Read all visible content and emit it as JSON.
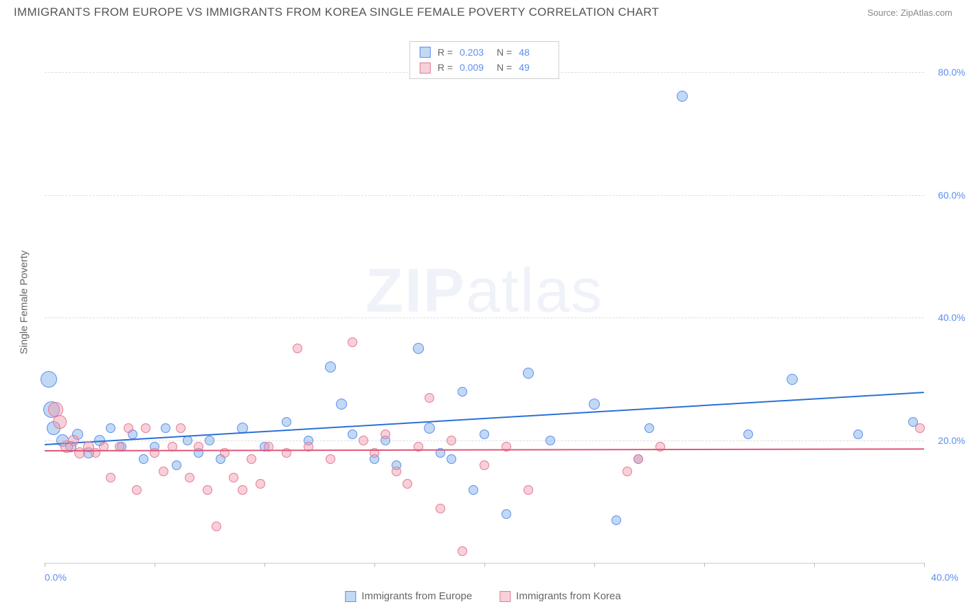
{
  "header": {
    "title": "IMMIGRANTS FROM EUROPE VS IMMIGRANTS FROM KOREA SINGLE FEMALE POVERTY CORRELATION CHART",
    "source": "Source: ZipAtlas.com"
  },
  "chart": {
    "type": "scatter",
    "y_axis_title": "Single Female Poverty",
    "watermark": "ZIPatlas",
    "xlim": [
      0,
      40
    ],
    "ylim": [
      0,
      85
    ],
    "x_ticks": [
      0,
      5,
      10,
      15,
      20,
      25,
      30,
      35,
      40
    ],
    "x_tick_labels": {
      "min": "0.0%",
      "max": "40.0%"
    },
    "y_gridlines": [
      20,
      40,
      60,
      80
    ],
    "y_tick_labels": [
      "20.0%",
      "40.0%",
      "60.0%",
      "80.0%"
    ],
    "background_color": "#ffffff",
    "grid_color": "#dddddd",
    "axis_label_color": "#5b8def",
    "series": [
      {
        "id": "europe",
        "label": "Immigrants from Europe",
        "fill_color": "rgba(120,170,230,0.45)",
        "stroke_color": "#5b8def",
        "trend_color": "#2a6fd6",
        "R": "0.203",
        "N": "48",
        "trend": {
          "x1": 0,
          "y1": 19.5,
          "x2": 40,
          "y2": 28.0
        },
        "points": [
          {
            "x": 0.2,
            "y": 30,
            "r": 12
          },
          {
            "x": 0.3,
            "y": 25,
            "r": 12
          },
          {
            "x": 0.4,
            "y": 22,
            "r": 10
          },
          {
            "x": 0.8,
            "y": 20,
            "r": 9
          },
          {
            "x": 1.2,
            "y": 19,
            "r": 8
          },
          {
            "x": 1.5,
            "y": 21,
            "r": 8
          },
          {
            "x": 2.0,
            "y": 18,
            "r": 8
          },
          {
            "x": 2.5,
            "y": 20,
            "r": 8
          },
          {
            "x": 3.0,
            "y": 22,
            "r": 7
          },
          {
            "x": 3.5,
            "y": 19,
            "r": 7
          },
          {
            "x": 4.0,
            "y": 21,
            "r": 7
          },
          {
            "x": 4.5,
            "y": 17,
            "r": 7
          },
          {
            "x": 5.0,
            "y": 19,
            "r": 7
          },
          {
            "x": 5.5,
            "y": 22,
            "r": 7
          },
          {
            "x": 6.0,
            "y": 16,
            "r": 7
          },
          {
            "x": 6.5,
            "y": 20,
            "r": 7
          },
          {
            "x": 7.0,
            "y": 18,
            "r": 7
          },
          {
            "x": 7.5,
            "y": 20,
            "r": 7
          },
          {
            "x": 8.0,
            "y": 17,
            "r": 7
          },
          {
            "x": 9.0,
            "y": 22,
            "r": 8
          },
          {
            "x": 10.0,
            "y": 19,
            "r": 7
          },
          {
            "x": 11.0,
            "y": 23,
            "r": 7
          },
          {
            "x": 12.0,
            "y": 20,
            "r": 7
          },
          {
            "x": 13.0,
            "y": 32,
            "r": 8
          },
          {
            "x": 13.5,
            "y": 26,
            "r": 8
          },
          {
            "x": 14.0,
            "y": 21,
            "r": 7
          },
          {
            "x": 15.0,
            "y": 17,
            "r": 7
          },
          {
            "x": 15.5,
            "y": 20,
            "r": 7
          },
          {
            "x": 16.0,
            "y": 16,
            "r": 7
          },
          {
            "x": 17.0,
            "y": 35,
            "r": 8
          },
          {
            "x": 17.5,
            "y": 22,
            "r": 8
          },
          {
            "x": 18.0,
            "y": 18,
            "r": 7
          },
          {
            "x": 18.5,
            "y": 17,
            "r": 7
          },
          {
            "x": 19.0,
            "y": 28,
            "r": 7
          },
          {
            "x": 19.5,
            "y": 12,
            "r": 7
          },
          {
            "x": 20.0,
            "y": 21,
            "r": 7
          },
          {
            "x": 21.0,
            "y": 8,
            "r": 7
          },
          {
            "x": 22.0,
            "y": 31,
            "r": 8
          },
          {
            "x": 23.0,
            "y": 20,
            "r": 7
          },
          {
            "x": 25.0,
            "y": 26,
            "r": 8
          },
          {
            "x": 26.0,
            "y": 7,
            "r": 7
          },
          {
            "x": 27.0,
            "y": 17,
            "r": 7
          },
          {
            "x": 27.5,
            "y": 22,
            "r": 7
          },
          {
            "x": 29.0,
            "y": 76,
            "r": 8
          },
          {
            "x": 32.0,
            "y": 21,
            "r": 7
          },
          {
            "x": 34.0,
            "y": 30,
            "r": 8
          },
          {
            "x": 37.0,
            "y": 21,
            "r": 7
          },
          {
            "x": 39.5,
            "y": 23,
            "r": 7
          }
        ]
      },
      {
        "id": "korea",
        "label": "Immigrants from Korea",
        "fill_color": "rgba(240,150,170,0.45)",
        "stroke_color": "#e27a94",
        "trend_color": "#e05577",
        "R": "0.009",
        "N": "49",
        "trend": {
          "x1": 0,
          "y1": 18.5,
          "x2": 40,
          "y2": 18.8
        },
        "points": [
          {
            "x": 0.5,
            "y": 25,
            "r": 11
          },
          {
            "x": 0.7,
            "y": 23,
            "r": 10
          },
          {
            "x": 1.0,
            "y": 19,
            "r": 9
          },
          {
            "x": 1.3,
            "y": 20,
            "r": 8
          },
          {
            "x": 1.6,
            "y": 18,
            "r": 8
          },
          {
            "x": 2.0,
            "y": 19,
            "r": 8
          },
          {
            "x": 2.3,
            "y": 18,
            "r": 7
          },
          {
            "x": 2.7,
            "y": 19,
            "r": 7
          },
          {
            "x": 3.0,
            "y": 14,
            "r": 7
          },
          {
            "x": 3.4,
            "y": 19,
            "r": 7
          },
          {
            "x": 3.8,
            "y": 22,
            "r": 7
          },
          {
            "x": 4.2,
            "y": 12,
            "r": 7
          },
          {
            "x": 4.6,
            "y": 22,
            "r": 7
          },
          {
            "x": 5.0,
            "y": 18,
            "r": 7
          },
          {
            "x": 5.4,
            "y": 15,
            "r": 7
          },
          {
            "x": 5.8,
            "y": 19,
            "r": 7
          },
          {
            "x": 6.2,
            "y": 22,
            "r": 7
          },
          {
            "x": 6.6,
            "y": 14,
            "r": 7
          },
          {
            "x": 7.0,
            "y": 19,
            "r": 7
          },
          {
            "x": 7.4,
            "y": 12,
            "r": 7
          },
          {
            "x": 7.8,
            "y": 6,
            "r": 7
          },
          {
            "x": 8.2,
            "y": 18,
            "r": 7
          },
          {
            "x": 8.6,
            "y": 14,
            "r": 7
          },
          {
            "x": 9.0,
            "y": 12,
            "r": 7
          },
          {
            "x": 9.4,
            "y": 17,
            "r": 7
          },
          {
            "x": 9.8,
            "y": 13,
            "r": 7
          },
          {
            "x": 10.2,
            "y": 19,
            "r": 7
          },
          {
            "x": 11.0,
            "y": 18,
            "r": 7
          },
          {
            "x": 11.5,
            "y": 35,
            "r": 7
          },
          {
            "x": 12.0,
            "y": 19,
            "r": 7
          },
          {
            "x": 13.0,
            "y": 17,
            "r": 7
          },
          {
            "x": 14.0,
            "y": 36,
            "r": 7
          },
          {
            "x": 14.5,
            "y": 20,
            "r": 7
          },
          {
            "x": 15.0,
            "y": 18,
            "r": 7
          },
          {
            "x": 15.5,
            "y": 21,
            "r": 7
          },
          {
            "x": 16.0,
            "y": 15,
            "r": 7
          },
          {
            "x": 16.5,
            "y": 13,
            "r": 7
          },
          {
            "x": 17.0,
            "y": 19,
            "r": 7
          },
          {
            "x": 17.5,
            "y": 27,
            "r": 7
          },
          {
            "x": 18.0,
            "y": 9,
            "r": 7
          },
          {
            "x": 18.5,
            "y": 20,
            "r": 7
          },
          {
            "x": 19.0,
            "y": 2,
            "r": 7
          },
          {
            "x": 20.0,
            "y": 16,
            "r": 7
          },
          {
            "x": 21.0,
            "y": 19,
            "r": 7
          },
          {
            "x": 22.0,
            "y": 12,
            "r": 7
          },
          {
            "x": 26.5,
            "y": 15,
            "r": 7
          },
          {
            "x": 27.0,
            "y": 17,
            "r": 7
          },
          {
            "x": 28.0,
            "y": 19,
            "r": 7
          },
          {
            "x": 39.8,
            "y": 22,
            "r": 7
          }
        ]
      }
    ]
  }
}
